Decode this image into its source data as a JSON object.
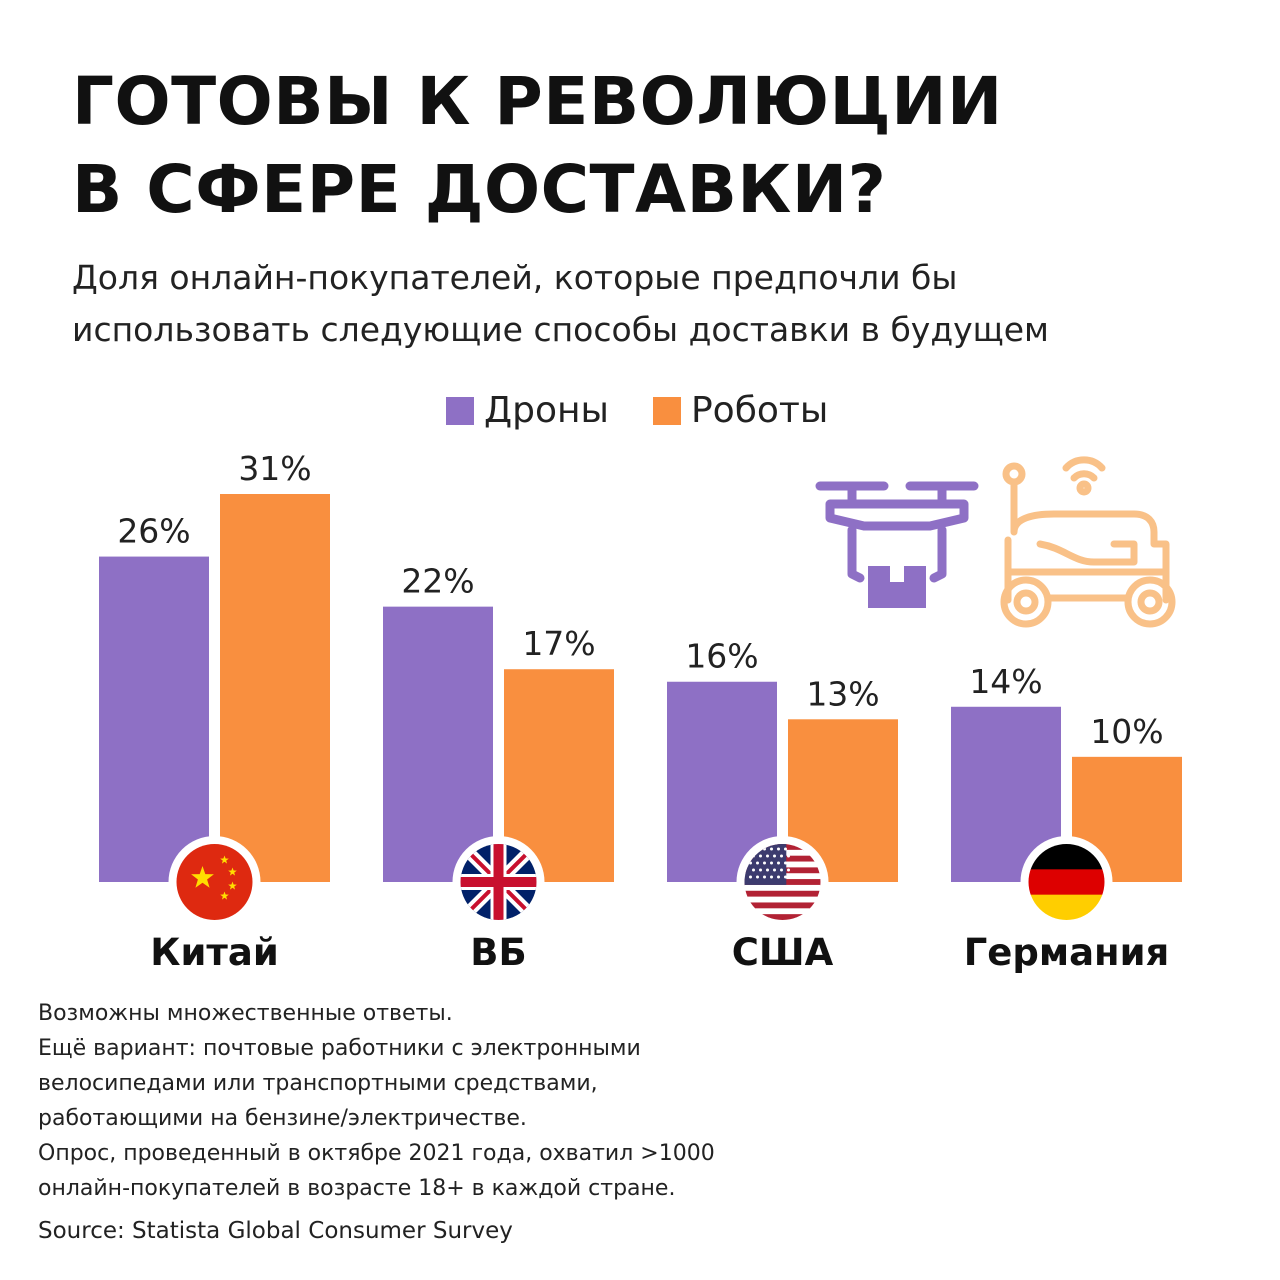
{
  "title_lines": [
    "ГОТОВЫ К РЕВОЛЮЦИИ",
    "В СФЕРЕ ДОСТАВКИ?"
  ],
  "subtitle_lines": [
    "Доля онлайн-покупателей, которые предпочли бы",
    "использовать следующие способы доставки в будущем"
  ],
  "legend": {
    "drones": "Дроны",
    "robots": "Роботы"
  },
  "colors": {
    "drones": "#8e70c5",
    "robots": "#f98f3f",
    "robot_illustration": "#f9c188"
  },
  "illustrations": [
    "drone-with-package-icon",
    "delivery-robot-icon"
  ],
  "chart_data": {
    "type": "bar",
    "categories": [
      "Китай",
      "ВБ",
      "США",
      "Германия"
    ],
    "flags": [
      "china-flag-icon",
      "uk-flag-icon",
      "usa-flag-icon",
      "germany-flag-icon"
    ],
    "series": [
      {
        "name": "Дроны",
        "values": [
          26,
          22,
          16,
          14
        ],
        "labels": [
          "26%",
          "22%",
          "16%",
          "14%"
        ]
      },
      {
        "name": "Роботы",
        "values": [
          31,
          17,
          13,
          10
        ],
        "labels": [
          "31%",
          "17%",
          "13%",
          "10%"
        ]
      }
    ],
    "unit": "%",
    "ylim": [
      0,
      31
    ],
    "grid": false,
    "legend_position": "top"
  },
  "notes": [
    "Возможны множественные ответы.",
    "Ещё вариант: почтовые работники с электронными",
    "велосипедами или транспортными средствами,",
    "работающими на бензине/электричестве.",
    "Опрос, проведенный в октябре 2021 года, охватил >1000",
    "онлайн-покупателей в возрасте 18+ в каждой стране."
  ],
  "source": "Source: Statista Global Consumer Survey"
}
